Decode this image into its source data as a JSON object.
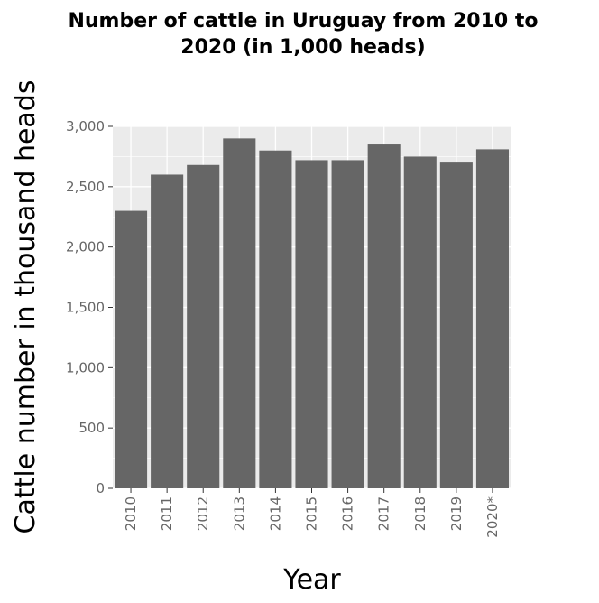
{
  "chart_data": {
    "type": "bar",
    "title_lines": [
      "Number of cattle in Uruguay from 2010 to",
      "2020 (in 1,000 heads)"
    ],
    "title": "Number of cattle in Uruguay from 2010 to 2020 (in 1,000 heads)",
    "xlabel": "Year",
    "ylabel": "Cattle number in thousand heads",
    "categories": [
      "2010",
      "2011",
      "2012",
      "2013",
      "2014",
      "2015",
      "2016",
      "2017",
      "2018",
      "2019",
      "2020*"
    ],
    "values": [
      2300,
      2600,
      2680,
      2900,
      2800,
      2720,
      2720,
      2850,
      2750,
      2700,
      2810
    ],
    "ylim": [
      0,
      3000
    ],
    "yticks": [
      0,
      500,
      1000,
      1500,
      2000,
      2500,
      3000
    ],
    "ytick_labels": [
      "0",
      "500",
      "1,000",
      "1,500",
      "2,000",
      "2,500",
      "3,000"
    ],
    "grid": true,
    "legend": "none",
    "colors": {
      "bar": "#666666",
      "panel": "#ebebeb",
      "gridline": "#ffffff",
      "tick_text": "#666666"
    }
  }
}
